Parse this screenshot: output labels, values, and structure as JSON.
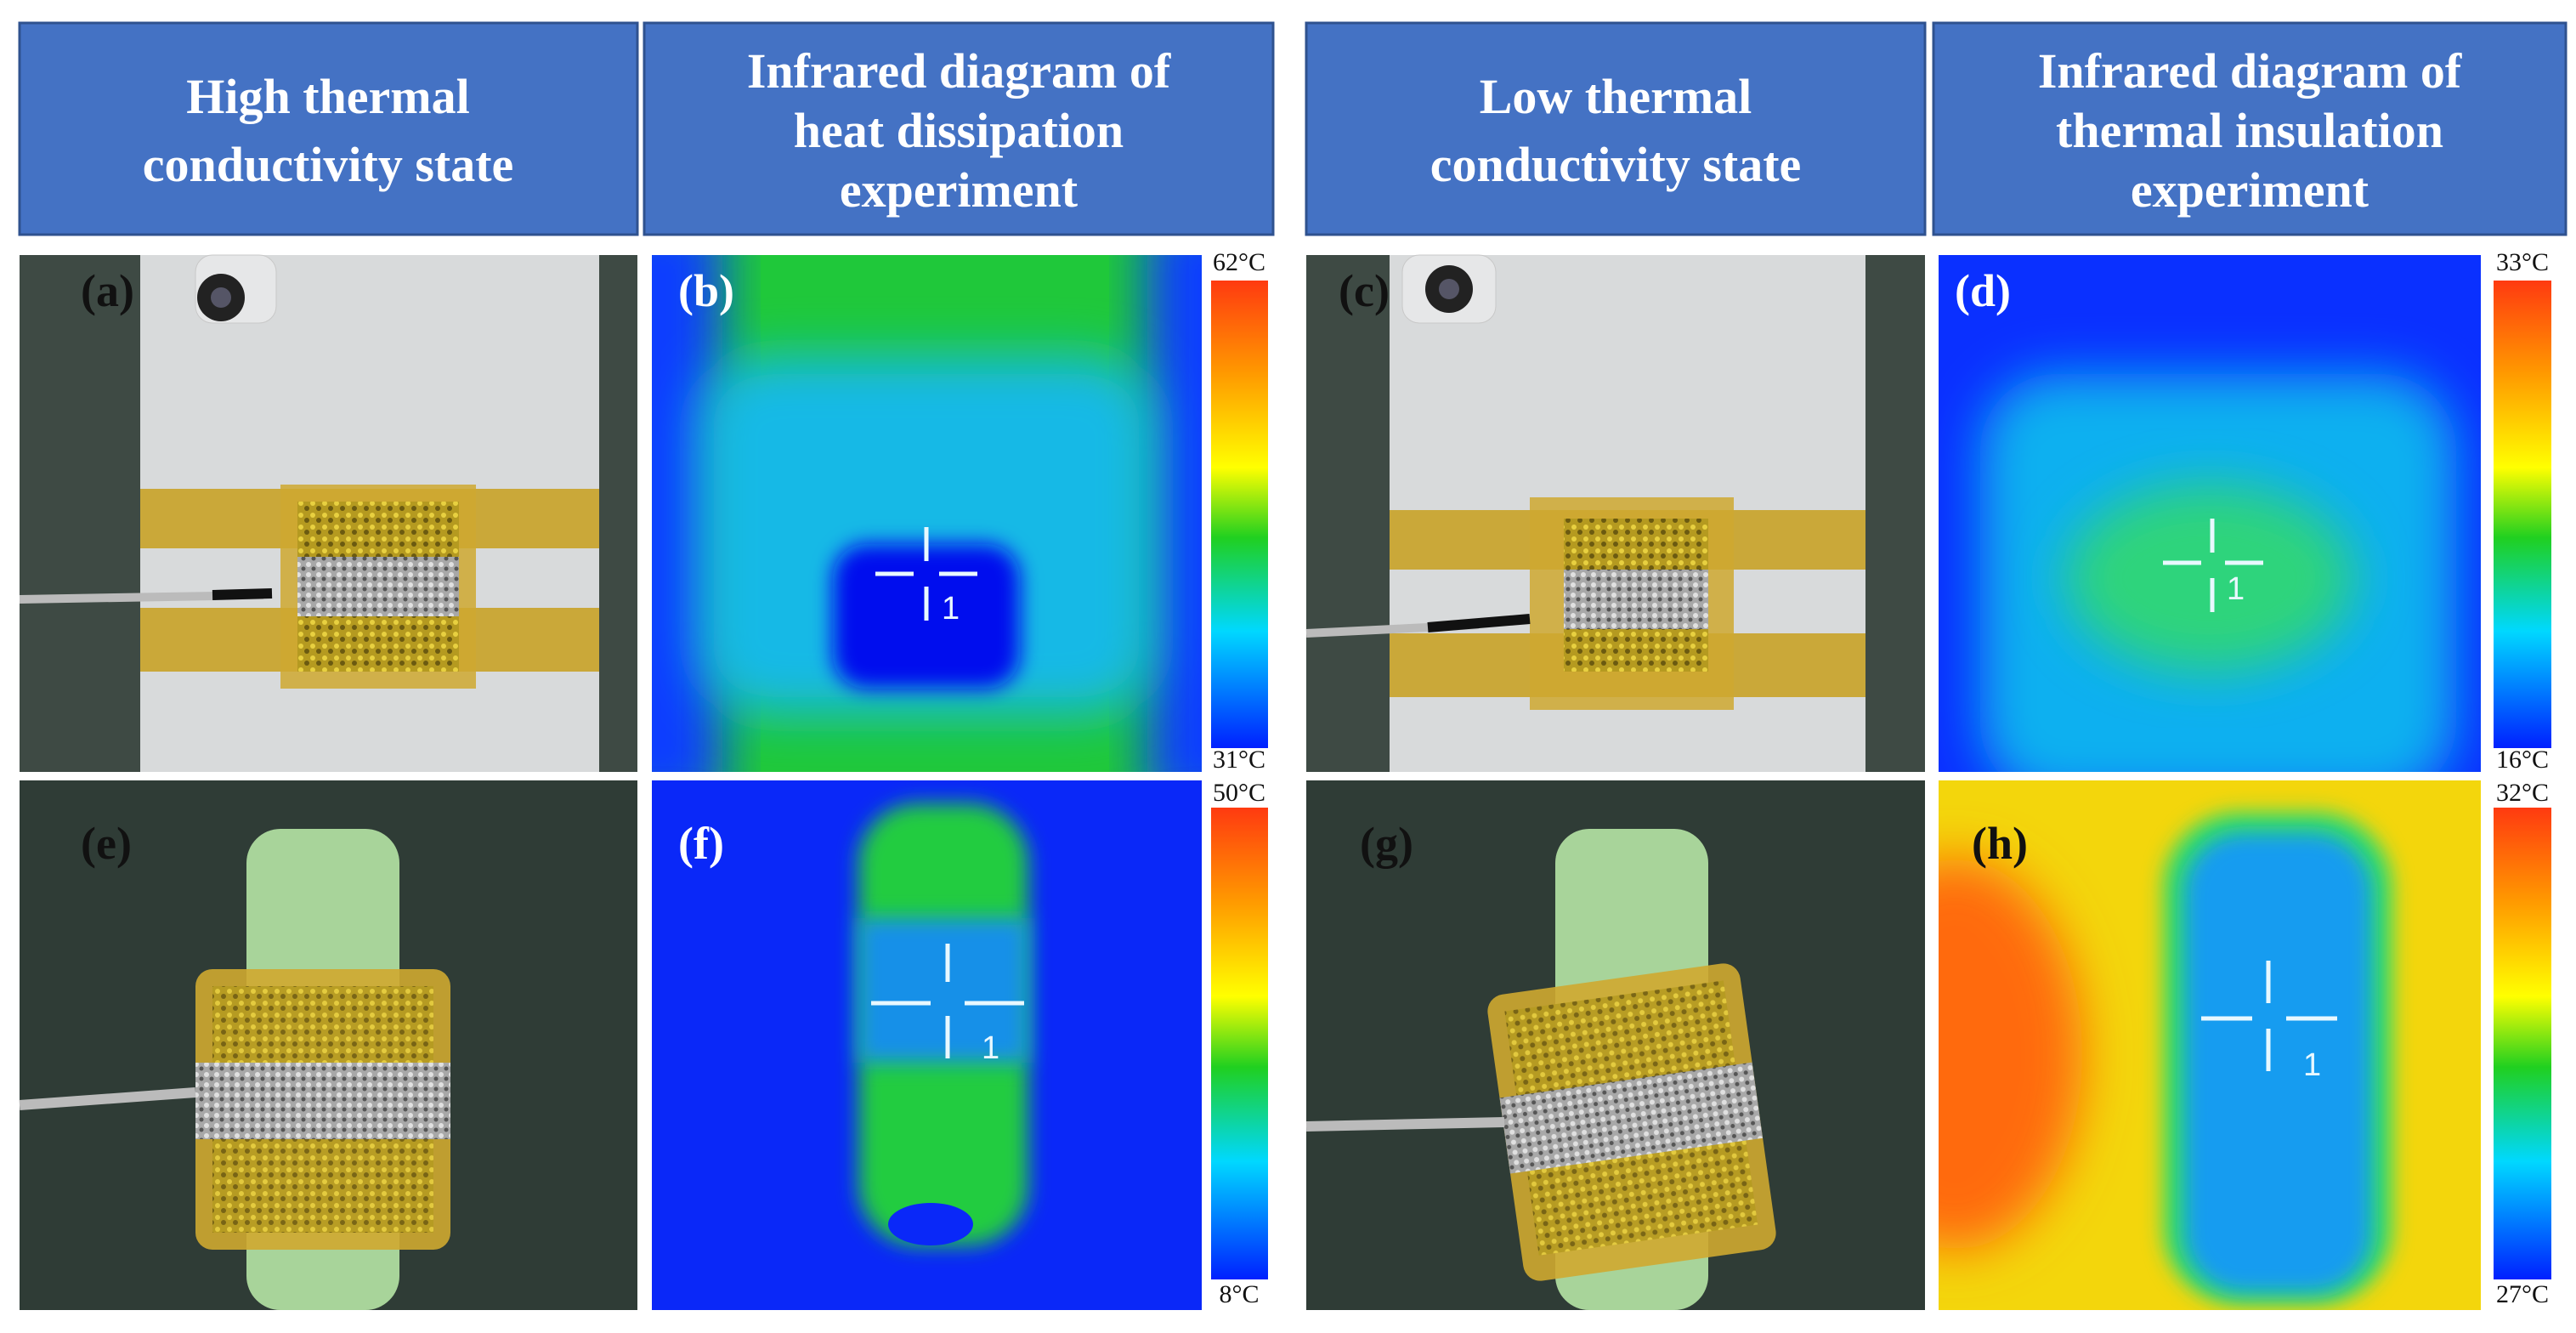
{
  "headers": [
    {
      "lines": [
        "High thermal",
        "conductivity state"
      ]
    },
    {
      "lines": [
        "Infrared diagram of",
        "heat dissipation",
        "experiment"
      ]
    },
    {
      "lines": [
        "Low thermal",
        "conductivity state"
      ]
    },
    {
      "lines": [
        "Infrared diagram of",
        "thermal insulation",
        "experiment"
      ]
    }
  ],
  "panels": [
    {
      "label": "(a)"
    },
    {
      "label": "(b)",
      "scale_max": "62°C",
      "scale_min": "31°C",
      "marker": "1"
    },
    {
      "label": "(c)"
    },
    {
      "label": "(d)",
      "scale_max": "33°C",
      "scale_min": "16°C",
      "marker": "1"
    },
    {
      "label": "(e)"
    },
    {
      "label": "(f)",
      "scale_max": "50°C",
      "scale_min": "8°C",
      "marker": "1"
    },
    {
      "label": "(g)"
    },
    {
      "label": "(h)",
      "scale_max": "32°C",
      "scale_min": "27°C",
      "marker": "1"
    }
  ]
}
